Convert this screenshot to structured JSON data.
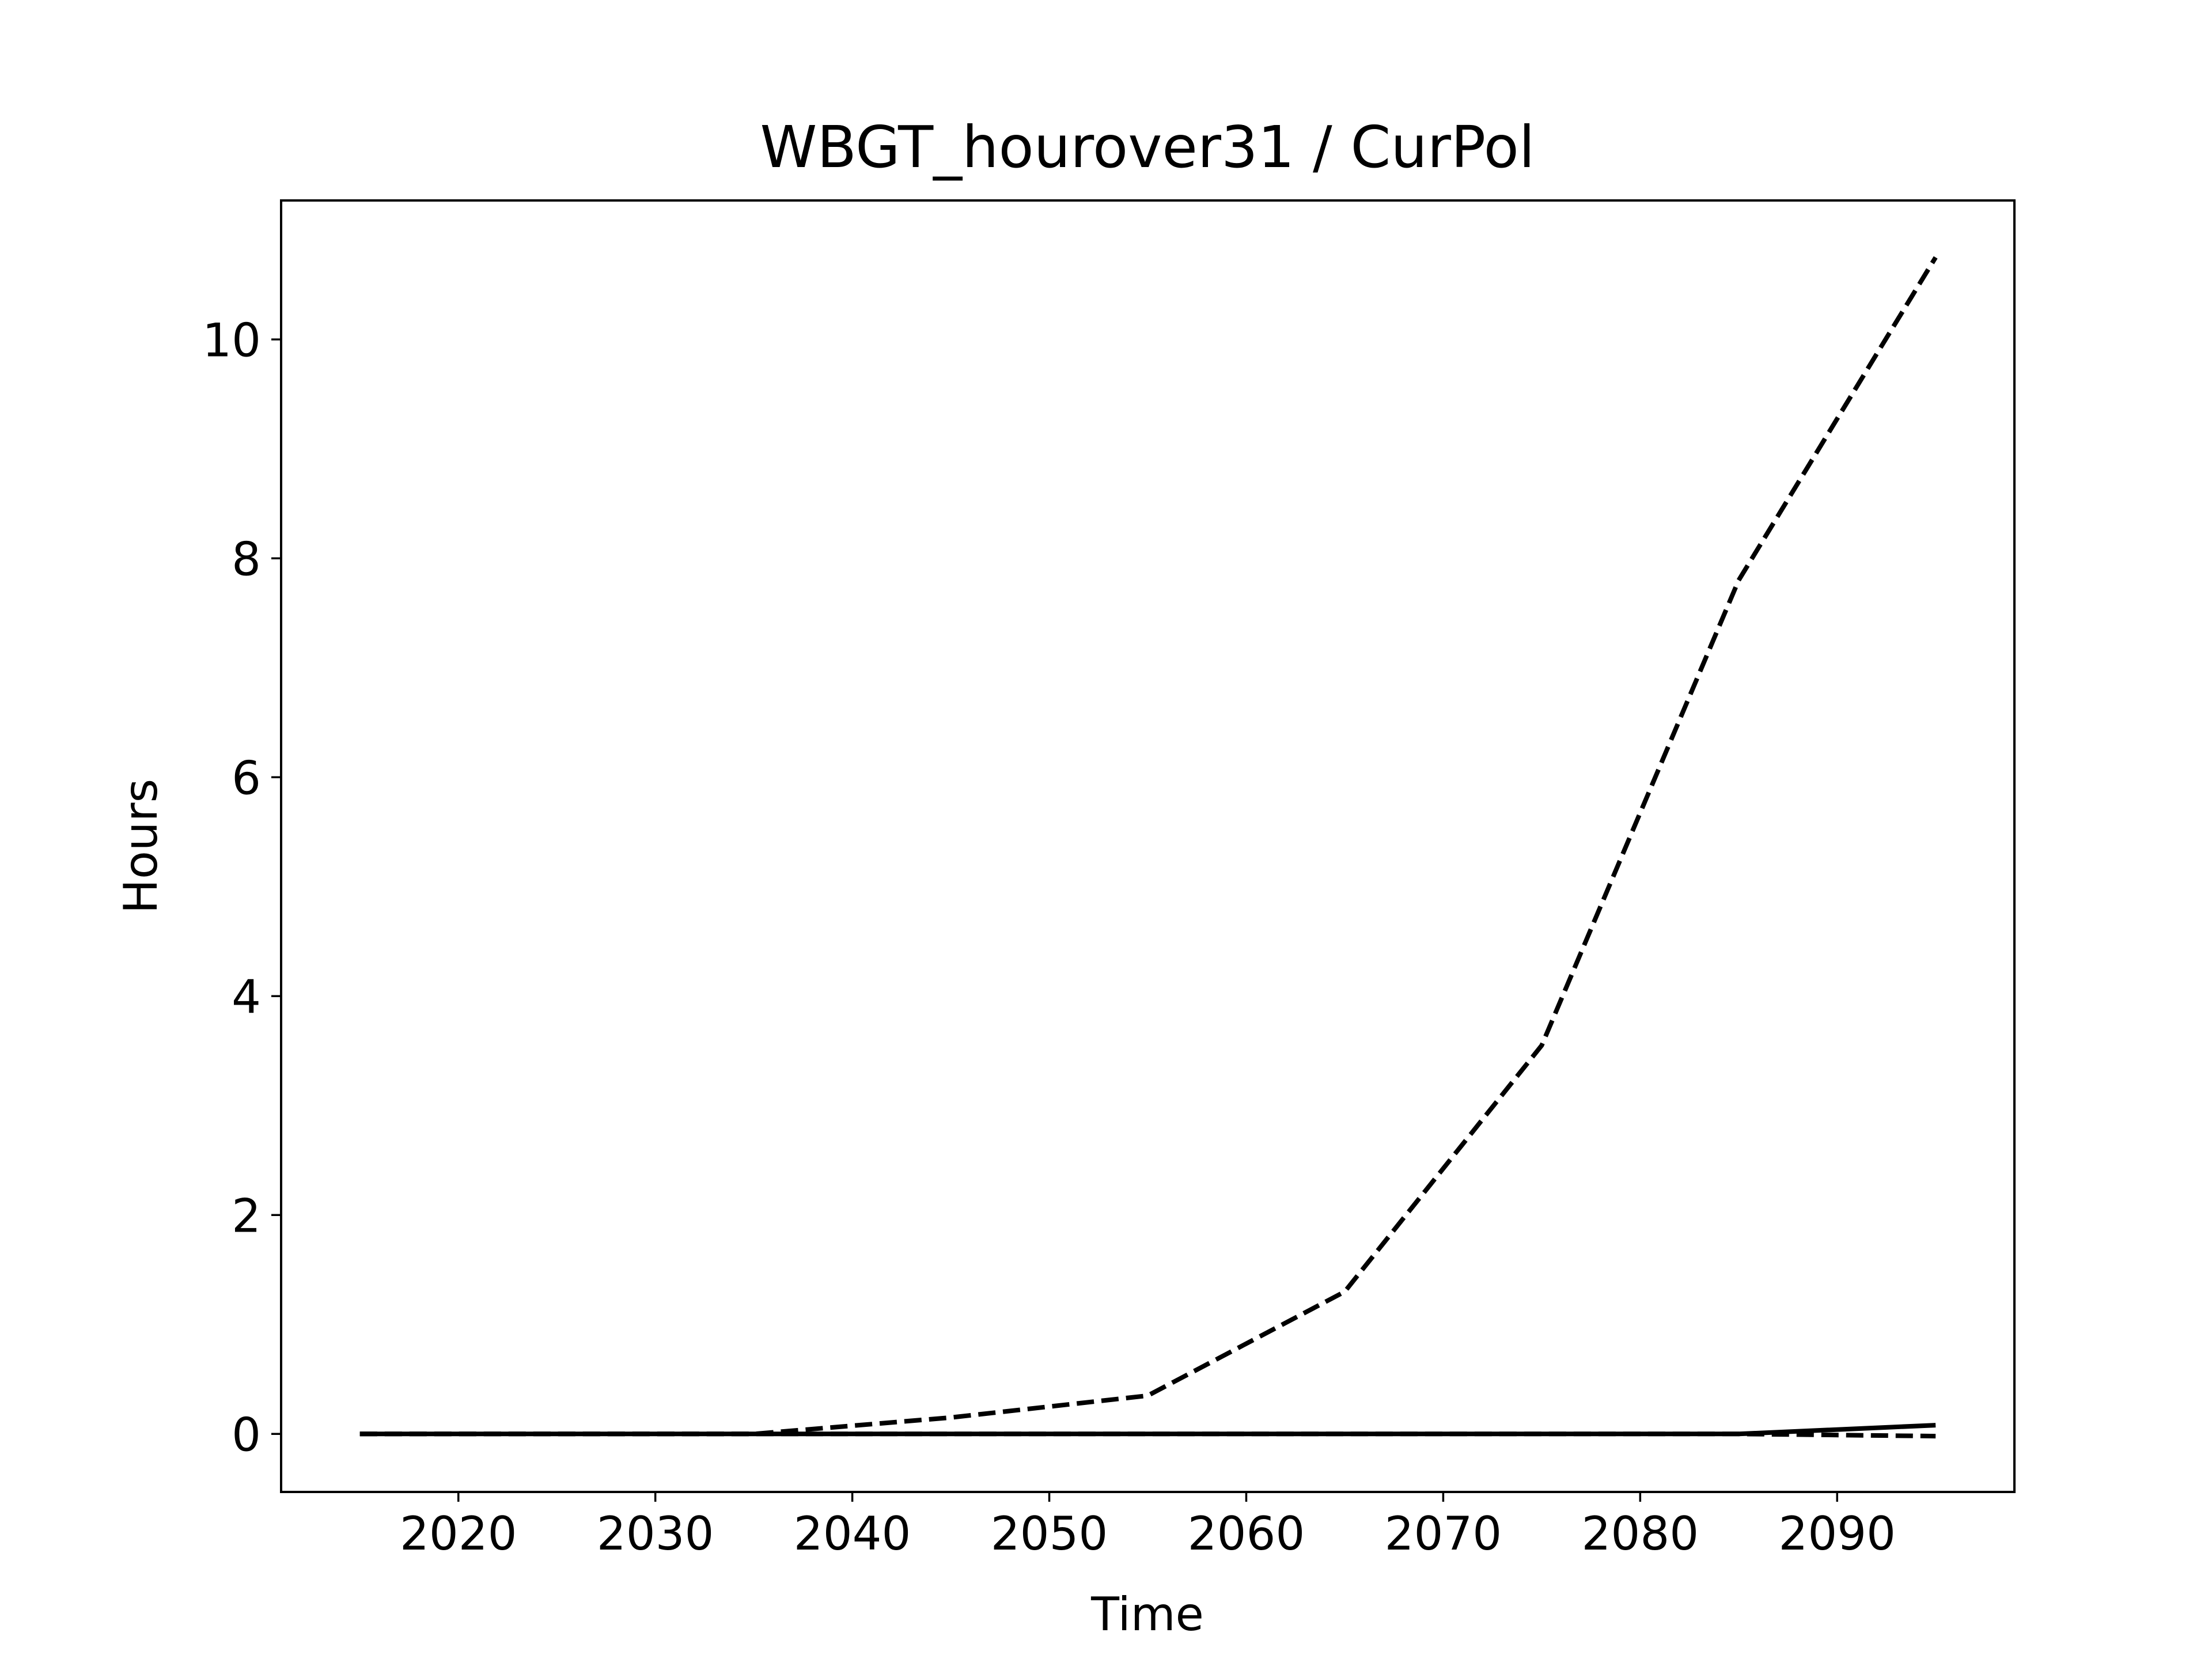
{
  "chart_data": {
    "type": "line",
    "title": "WBGT_hourover31 / CurPol",
    "xlabel": "Time",
    "ylabel": "Hours",
    "x": [
      2015,
      2025,
      2035,
      2045,
      2055,
      2065,
      2075,
      2085,
      2095
    ],
    "xlim": [
      2011,
      2099
    ],
    "ylim": [
      -0.53,
      11.27
    ],
    "xticks": [
      2020,
      2030,
      2040,
      2050,
      2060,
      2070,
      2080,
      2090
    ],
    "yticks": [
      0,
      2,
      4,
      6,
      8,
      10
    ],
    "xtick_labels": [
      "2020",
      "2030",
      "2040",
      "2050",
      "2060",
      "2070",
      "2080",
      "2090"
    ],
    "ytick_labels": [
      "0",
      "2",
      "4",
      "6",
      "8",
      "10"
    ],
    "grid": false,
    "series": [
      {
        "style": "dashed",
        "color": "#000000",
        "values": [
          0.0,
          0.0,
          0.0,
          0.15,
          0.35,
          1.3,
          3.55,
          7.8,
          10.75
        ]
      },
      {
        "style": "dashed",
        "color": "#000000",
        "values": [
          0.0,
          0.0,
          0.0,
          0.0,
          0.0,
          0.0,
          0.0,
          0.0,
          -0.02
        ]
      },
      {
        "style": "solid",
        "color": "#000000",
        "values": [
          0.0,
          0.0,
          0.0,
          0.0,
          0.0,
          0.0,
          0.0,
          0.0,
          0.08
        ]
      }
    ]
  }
}
